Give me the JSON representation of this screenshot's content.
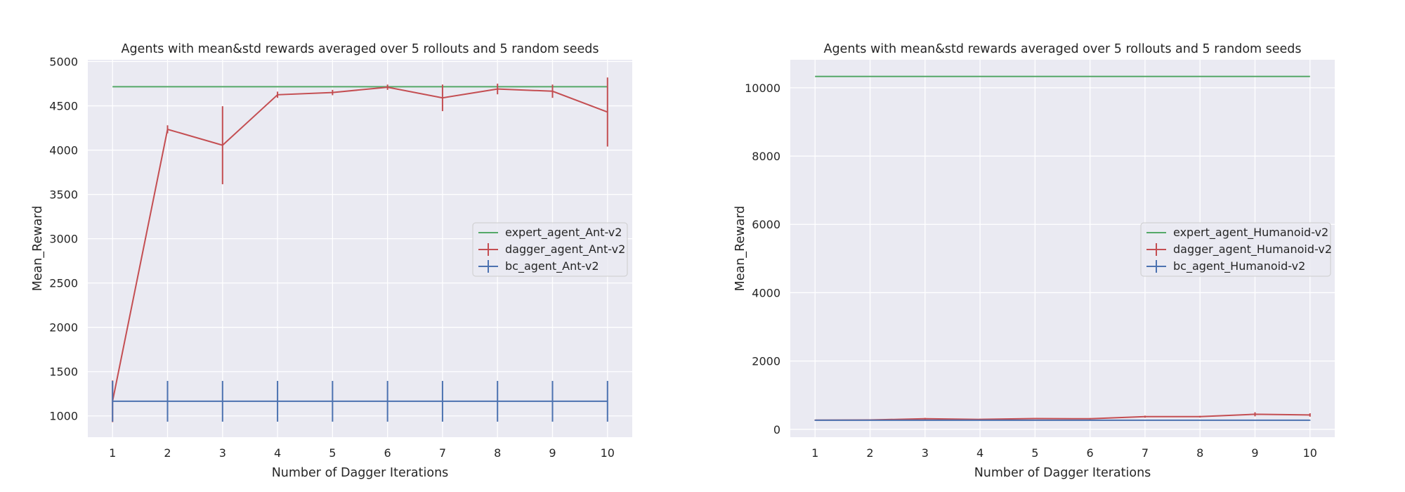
{
  "chart_data": [
    {
      "type": "line",
      "title": "Agents with mean&std rewards averaged over 5 rollouts and 5 random seeds",
      "xlabel": "Number of Dagger Iterations",
      "ylabel": "Mean_Reward",
      "xlim": [
        0.55,
        10.45
      ],
      "ylim": [
        760,
        5020
      ],
      "xticks": [
        1,
        2,
        3,
        4,
        5,
        6,
        7,
        8,
        9,
        10
      ],
      "yticks": [
        1000,
        1500,
        2000,
        2500,
        3000,
        3500,
        4000,
        4500,
        5000
      ],
      "grid": true,
      "legend_position": "center-right",
      "x": [
        1,
        2,
        3,
        4,
        5,
        6,
        7,
        8,
        9,
        10
      ],
      "series": [
        {
          "name": "expert_agent_Ant-v2",
          "color": "#55a868",
          "values": [
            4715,
            4715,
            4715,
            4715,
            4715,
            4715,
            4715,
            4715,
            4715,
            4715
          ],
          "errors": null
        },
        {
          "name": "dagger_agent_Ant-v2",
          "color": "#c44e52",
          "values": [
            1165,
            4235,
            4055,
            4625,
            4650,
            4710,
            4590,
            4690,
            4665,
            4430
          ],
          "errors": [
            235,
            45,
            440,
            35,
            30,
            30,
            150,
            60,
            75,
            390
          ]
        },
        {
          "name": "bc_agent_Ant-v2",
          "color": "#4c72b0",
          "values": [
            1165,
            1165,
            1165,
            1165,
            1165,
            1165,
            1165,
            1165,
            1165,
            1165
          ],
          "errors": [
            230,
            230,
            230,
            230,
            230,
            230,
            230,
            230,
            230,
            230
          ]
        }
      ]
    },
    {
      "type": "line",
      "title": "Agents with mean&std rewards averaged over 5 rollouts and 5 random seeds",
      "xlabel": "Number of Dagger Iterations",
      "ylabel": "Mean_Reward",
      "xlim": [
        0.55,
        10.45
      ],
      "ylim": [
        -230,
        10820
      ],
      "xticks": [
        1,
        2,
        3,
        4,
        5,
        6,
        7,
        8,
        9,
        10
      ],
      "yticks": [
        0,
        2000,
        4000,
        6000,
        8000,
        10000
      ],
      "grid": true,
      "legend_position": "center-right",
      "x": [
        1,
        2,
        3,
        4,
        5,
        6,
        7,
        8,
        9,
        10
      ],
      "series": [
        {
          "name": "expert_agent_Humanoid-v2",
          "color": "#55a868",
          "values": [
            10330,
            10330,
            10330,
            10330,
            10330,
            10330,
            10330,
            10330,
            10330,
            10330
          ],
          "errors": null
        },
        {
          "name": "dagger_agent_Humanoid-v2",
          "color": "#c44e52",
          "values": [
            270,
            275,
            310,
            290,
            315,
            310,
            370,
            370,
            440,
            420
          ],
          "errors": [
            10,
            15,
            25,
            20,
            20,
            20,
            30,
            25,
            60,
            50
          ]
        },
        {
          "name": "bc_agent_Humanoid-v2",
          "color": "#4c72b0",
          "values": [
            265,
            265,
            265,
            265,
            265,
            265,
            265,
            265,
            265,
            265
          ],
          "errors": [
            10,
            10,
            10,
            10,
            10,
            10,
            10,
            10,
            10,
            10
          ]
        }
      ]
    }
  ]
}
